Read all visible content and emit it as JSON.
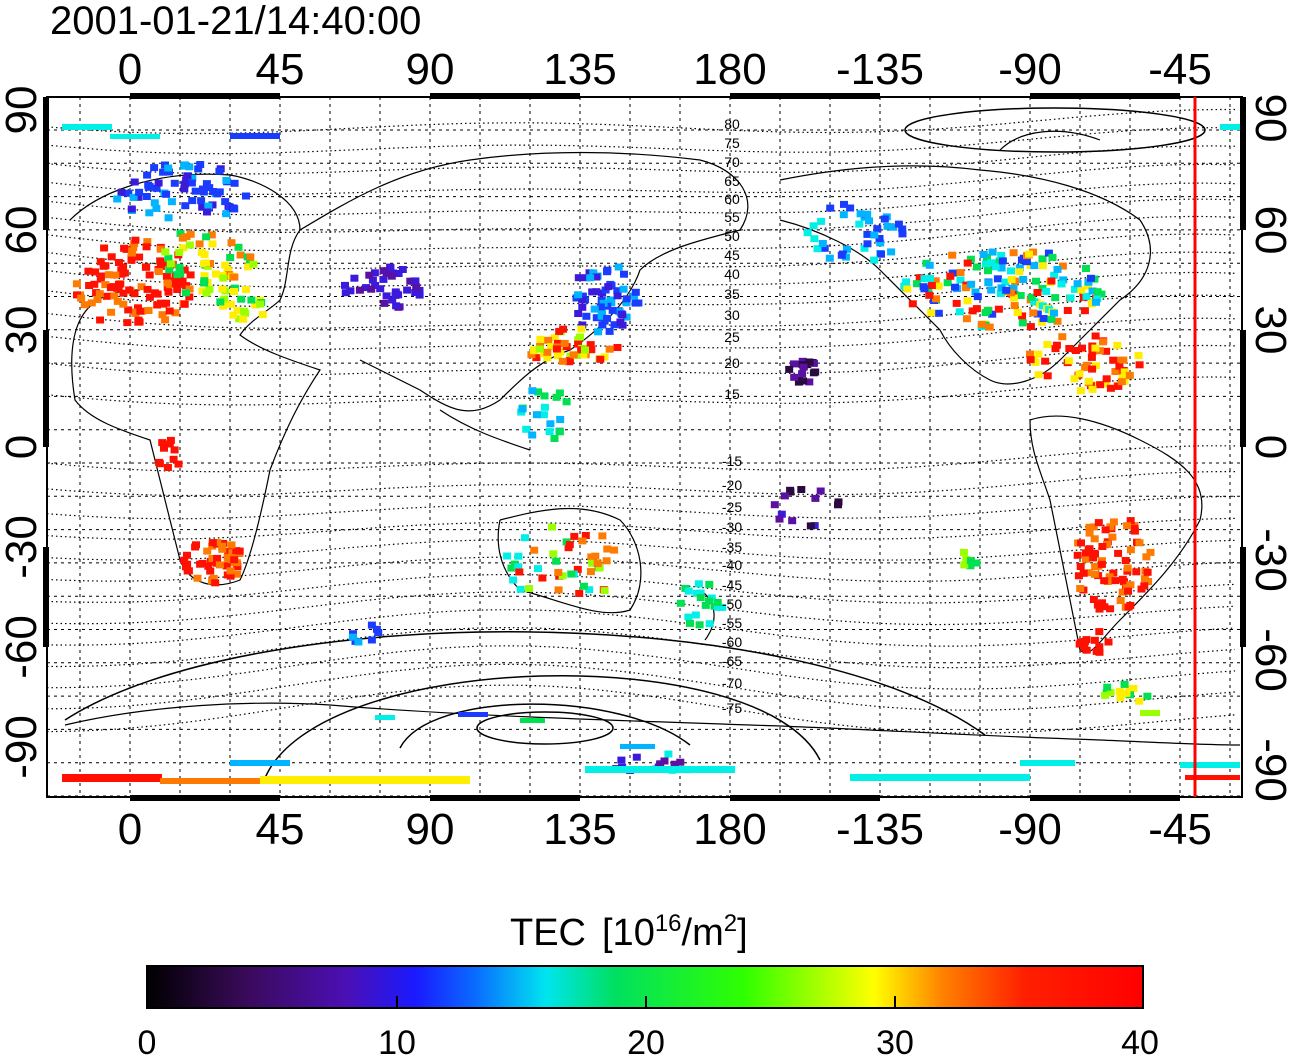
{
  "timestamp": "2001-01-21/14:40:00",
  "colorbar": {
    "title_main": "TEC",
    "title_unit_prefix": "[10",
    "title_unit_exp": "16",
    "title_unit_mid": "/m",
    "title_unit_exp2": "2",
    "title_unit_suffix": "]",
    "ticks": [
      "0",
      "10",
      "20",
      "30",
      "40"
    ],
    "range": [
      0,
      40
    ],
    "colormap_stops": [
      "#000000",
      "#3a0a5a",
      "#4b0fb4",
      "#1a1aff",
      "#0a6cff",
      "#00e4f0",
      "#00e060",
      "#30ff00",
      "#ffff00",
      "#ff8000",
      "#ff2000",
      "#ff0000"
    ]
  },
  "axes": {
    "lon_ticks_top": [
      "0",
      "45",
      "90",
      "135",
      "180",
      "-135",
      "-90",
      "-45"
    ],
    "lon_ticks_bottom": [
      "0",
      "45",
      "90",
      "135",
      "180",
      "-135",
      "-90",
      "-45"
    ],
    "lat_ticks_left": [
      "90",
      "60",
      "30",
      "0",
      "-30",
      "-60",
      "-90"
    ],
    "lat_ticks_right": [
      "90",
      "60",
      "30",
      "0",
      "-30",
      "-60",
      "-90"
    ]
  },
  "contour_labels": [
    "80",
    "75",
    "70",
    "65",
    "60",
    "55",
    "50",
    "45",
    "40",
    "35",
    "30",
    "25",
    "20",
    "15",
    "-15",
    "-20",
    "-25",
    "-30",
    "-35",
    "-40",
    "-45",
    "-50",
    "-55",
    "-60",
    "-65",
    "-70",
    "-75"
  ],
  "terminator_color": "#ff0000"
}
